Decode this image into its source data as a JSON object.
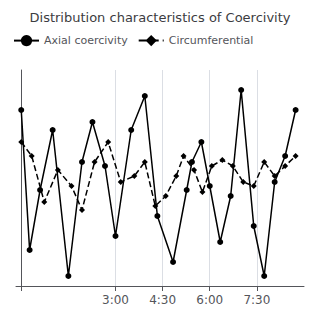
{
  "chart_data": {
    "type": "line",
    "title": "Distribution characteristics of Coercivity",
    "series": [
      {
        "name": "Axial coercivity",
        "color": "#000000",
        "marker": "circle",
        "line_style": "solid",
        "x": [
          0,
          8,
          18,
          30,
          45,
          58,
          68,
          80,
          90,
          105,
          118,
          130,
          145,
          158,
          163,
          172,
          180,
          190,
          200,
          210,
          222,
          232,
          242,
          252,
          262
        ],
        "values": [
          88,
          18,
          48,
          78,
          5,
          62,
          82,
          60,
          25,
          78,
          95,
          35,
          12,
          48,
          62,
          72,
          50,
          22,
          45,
          98,
          30,
          5,
          52,
          65,
          88
        ]
      },
      {
        "name": "Circumferential",
        "color": "#000000",
        "marker": "diamond",
        "line_style": "dashed",
        "x": [
          0,
          10,
          22,
          35,
          48,
          58,
          70,
          83,
          95,
          108,
          118,
          128,
          138,
          148,
          155,
          165,
          173,
          182,
          192,
          202,
          212,
          222,
          232,
          242,
          252,
          262
        ],
        "values": [
          72,
          65,
          42,
          58,
          50,
          38,
          62,
          72,
          52,
          55,
          62,
          40,
          45,
          55,
          65,
          58,
          47,
          60,
          63,
          60,
          52,
          50,
          62,
          55,
          60,
          65
        ]
      }
    ],
    "xlim": [
      -5,
      270
    ],
    "xticks": [
      {
        "value": 0,
        "label": null
      },
      {
        "value": 90,
        "label": "3:00"
      },
      {
        "value": 135,
        "label": "4:30"
      },
      {
        "value": 180,
        "label": "6:00"
      },
      {
        "value": 225,
        "label": "7:30"
      }
    ],
    "ylim": [
      0,
      108
    ],
    "tick_labels": "x",
    "grid": true,
    "legend": "upper left"
  }
}
